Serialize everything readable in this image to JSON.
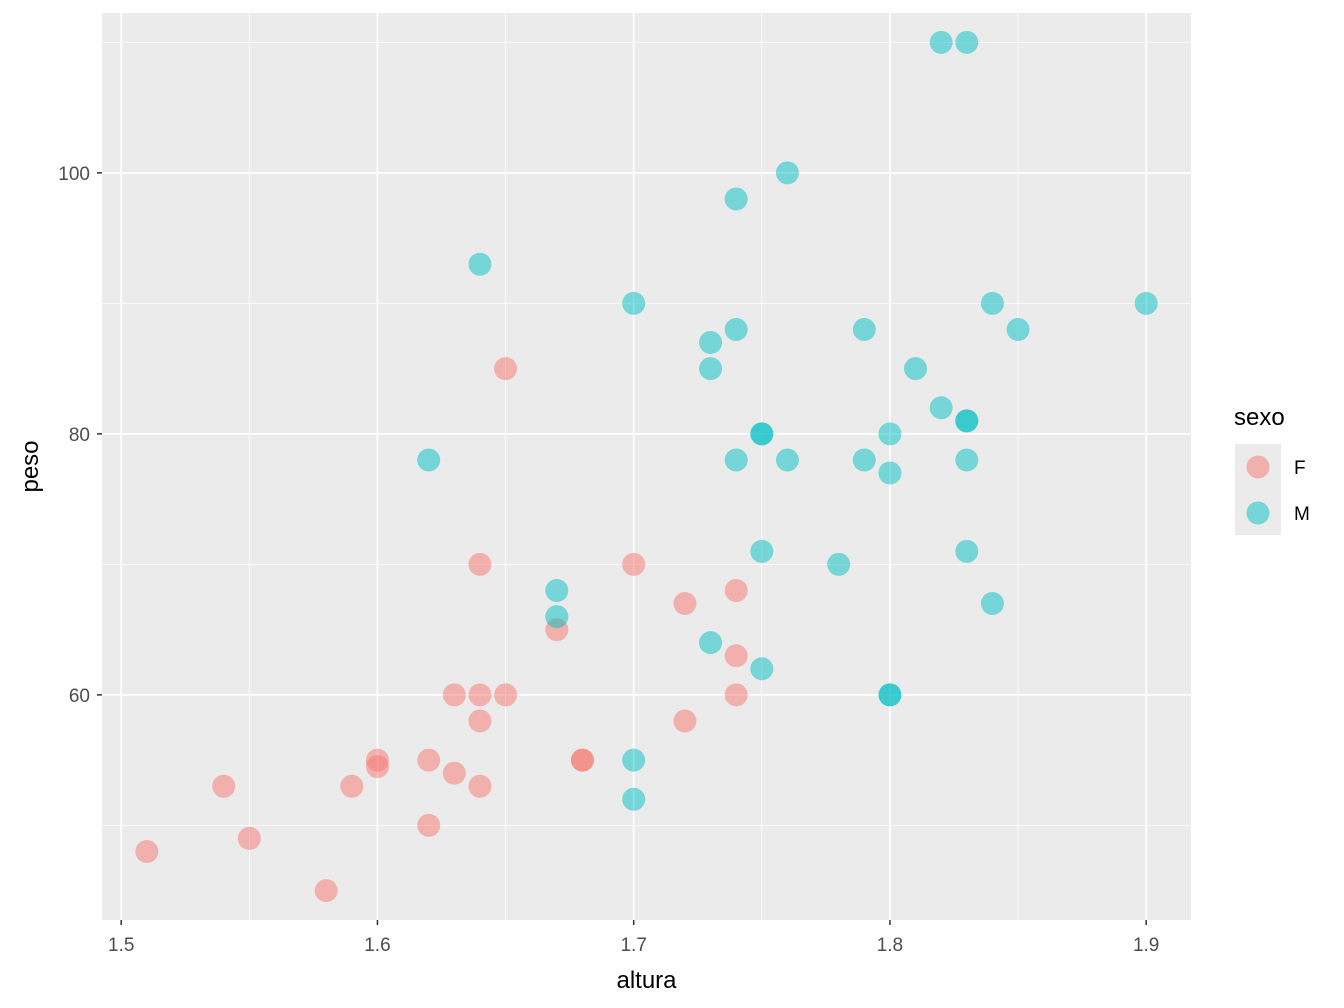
{
  "chart_data": {
    "type": "scatter",
    "xlabel": "altura",
    "ylabel": "peso",
    "xlim": [
      1.4925,
      1.9175
    ],
    "ylim": [
      42.75,
      112.25
    ],
    "x_ticks": [
      1.5,
      1.6,
      1.7,
      1.8,
      1.9
    ],
    "y_ticks": [
      60,
      80,
      100
    ],
    "x_tick_labels": [
      "1.5",
      "1.6",
      "1.7",
      "1.8",
      "1.9"
    ],
    "y_tick_labels": [
      "60",
      "80",
      "100"
    ],
    "grid": true,
    "legend": {
      "title": "sexo",
      "placement": "right"
    },
    "series": [
      {
        "name": "F",
        "color": "#F8766D",
        "points": [
          [
            1.51,
            48
          ],
          [
            1.54,
            53
          ],
          [
            1.55,
            49
          ],
          [
            1.58,
            45
          ],
          [
            1.59,
            53
          ],
          [
            1.6,
            55
          ],
          [
            1.6,
            54.5
          ],
          [
            1.62,
            55
          ],
          [
            1.62,
            50
          ],
          [
            1.63,
            60
          ],
          [
            1.63,
            54
          ],
          [
            1.64,
            70
          ],
          [
            1.64,
            60
          ],
          [
            1.64,
            58
          ],
          [
            1.64,
            53
          ],
          [
            1.65,
            85
          ],
          [
            1.65,
            60
          ],
          [
            1.67,
            65
          ],
          [
            1.68,
            55
          ],
          [
            1.68,
            55
          ],
          [
            1.7,
            70
          ],
          [
            1.72,
            67
          ],
          [
            1.72,
            58
          ],
          [
            1.74,
            68
          ],
          [
            1.74,
            63
          ],
          [
            1.74,
            60
          ]
        ]
      },
      {
        "name": "M",
        "color": "#00BFC4",
        "points": [
          [
            1.62,
            78
          ],
          [
            1.64,
            93
          ],
          [
            1.67,
            68
          ],
          [
            1.67,
            66
          ],
          [
            1.7,
            90
          ],
          [
            1.7,
            55
          ],
          [
            1.7,
            52
          ],
          [
            1.73,
            87
          ],
          [
            1.73,
            85
          ],
          [
            1.73,
            64
          ],
          [
            1.74,
            98
          ],
          [
            1.74,
            88
          ],
          [
            1.74,
            78
          ],
          [
            1.75,
            80
          ],
          [
            1.75,
            80
          ],
          [
            1.75,
            71
          ],
          [
            1.75,
            62
          ],
          [
            1.76,
            100
          ],
          [
            1.76,
            78
          ],
          [
            1.78,
            70
          ],
          [
            1.79,
            88
          ],
          [
            1.79,
            78
          ],
          [
            1.8,
            80
          ],
          [
            1.8,
            77
          ],
          [
            1.8,
            60
          ],
          [
            1.8,
            60
          ],
          [
            1.81,
            85
          ],
          [
            1.82,
            110
          ],
          [
            1.82,
            82
          ],
          [
            1.83,
            110
          ],
          [
            1.83,
            81
          ],
          [
            1.83,
            81
          ],
          [
            1.83,
            78
          ],
          [
            1.83,
            71
          ],
          [
            1.84,
            90
          ],
          [
            1.84,
            67
          ],
          [
            1.85,
            88
          ],
          [
            1.9,
            90
          ]
        ]
      }
    ]
  }
}
